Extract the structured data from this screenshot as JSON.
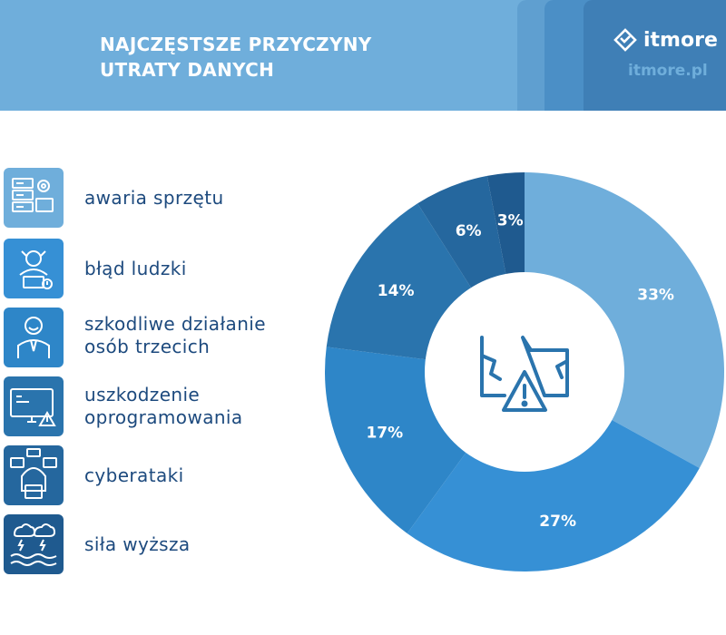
{
  "header": {
    "title_line1": "NAJCZĘSTSZE PRZYCZYNY",
    "title_line2": "UTRATY DANYCH",
    "logo_text": "itmore",
    "site": "itmore.pl",
    "logo_icon": "chevron-diamond-icon"
  },
  "legend": {
    "items": [
      {
        "line1": "awaria sprzętu",
        "line2": "",
        "icon": "server-gear-icon",
        "color": "#6faedb"
      },
      {
        "line1": "błąd ludzki",
        "line2": "",
        "icon": "stressed-person-icon",
        "color": "#3690d5"
      },
      {
        "line1": "szkodliwe działanie",
        "line2": "osób trzecich",
        "icon": "evil-person-icon",
        "color": "#2e86c8"
      },
      {
        "line1": "uszkodzenie",
        "line2": "oprogramowania",
        "icon": "monitor-warning-icon",
        "color": "#2a74ad"
      },
      {
        "line1": "cyberataki",
        "line2": "",
        "icon": "hacker-icon",
        "color": "#25679e"
      },
      {
        "line1": "siła wyższa",
        "line2": "",
        "icon": "storm-flood-icon",
        "color": "#1f5a8f"
      }
    ]
  },
  "chart_data": {
    "type": "pie",
    "donut": true,
    "categories": [
      "awaria sprzętu",
      "błąd ludzki",
      "szkodliwe działanie osób trzecich",
      "uszkodzenie oprogramowania",
      "cyberataki",
      "siła wyższa"
    ],
    "values": [
      33,
      27,
      17,
      14,
      6,
      3
    ],
    "labels": [
      "33%",
      "27%",
      "17%",
      "14%",
      "6%",
      "3%"
    ],
    "colors": [
      "#6faedb",
      "#3690d5",
      "#2e86c8",
      "#2a74ad",
      "#25679e",
      "#1f5a8f"
    ],
    "center_icon": "damaged-folder-warning-icon"
  }
}
